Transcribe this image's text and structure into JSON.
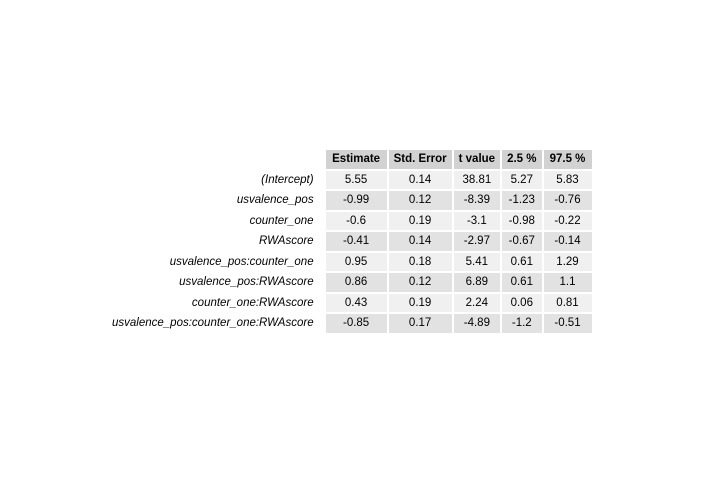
{
  "table": {
    "columns": [
      "Estimate",
      "Std. Error",
      "t value",
      "2.5 %",
      "97.5 %"
    ],
    "rows": [
      {
        "term": "(Intercept)",
        "estimate": "5.55",
        "std_error": "0.14",
        "t_value": "38.81",
        "ci_low": "5.27",
        "ci_high": "5.83"
      },
      {
        "term": "usvalence_pos",
        "estimate": "-0.99",
        "std_error": "0.12",
        "t_value": "-8.39",
        "ci_low": "-1.23",
        "ci_high": "-0.76"
      },
      {
        "term": "counter_one",
        "estimate": "-0.6",
        "std_error": "0.19",
        "t_value": "-3.1",
        "ci_low": "-0.98",
        "ci_high": "-0.22"
      },
      {
        "term": "RWAscore",
        "estimate": "-0.41",
        "std_error": "0.14",
        "t_value": "-2.97",
        "ci_low": "-0.67",
        "ci_high": "-0.14"
      },
      {
        "term": "usvalence_pos:counter_one",
        "estimate": "0.95",
        "std_error": "0.18",
        "t_value": "5.41",
        "ci_low": "0.61",
        "ci_high": "1.29"
      },
      {
        "term": "usvalence_pos:RWAscore",
        "estimate": "0.86",
        "std_error": "0.12",
        "t_value": "6.89",
        "ci_low": "0.61",
        "ci_high": "1.1"
      },
      {
        "term": "counter_one:RWAscore",
        "estimate": "0.43",
        "std_error": "0.19",
        "t_value": "2.24",
        "ci_low": "0.06",
        "ci_high": "0.81"
      },
      {
        "term": "usvalence_pos:counter_one:RWAscore",
        "estimate": "-0.85",
        "std_error": "0.17",
        "t_value": "-4.89",
        "ci_low": "-1.2",
        "ci_high": "-0.51"
      }
    ]
  },
  "colors": {
    "header_bg": "#d2d2d2",
    "row_odd_bg": "#f0f0f0",
    "row_even_bg": "#e2e2e2"
  }
}
